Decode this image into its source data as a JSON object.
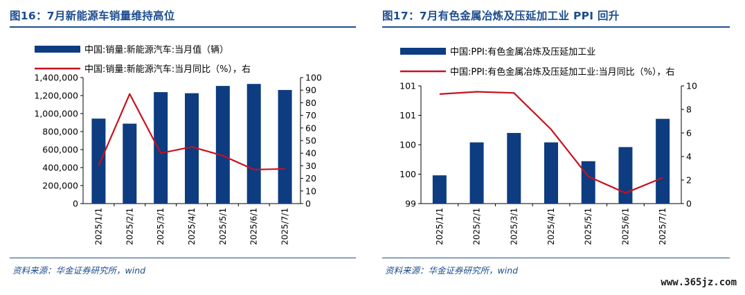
{
  "watermark": "www.365jz.com",
  "colors": {
    "bar": "#0d3c80",
    "line": "#c8101e",
    "title": "#1c4c8f"
  },
  "left": {
    "title": "图16：7月新能源车销量维持高位",
    "source": "资料来源：华金证券研究所，wind",
    "chart_data": {
      "type": "bar",
      "categories": [
        "2025/1/1",
        "2025/2/1",
        "2025/3/1",
        "2025/4/1",
        "2025/5/1",
        "2025/6/1",
        "2025/7/1"
      ],
      "series": [
        {
          "name": "中国:销量:新能源汽车:当月值（辆）",
          "type": "bar",
          "axis": "left",
          "values": [
            944000,
            888000,
            1238000,
            1226000,
            1307000,
            1329000,
            1262000
          ]
        },
        {
          "name": "中国:销量:新能源汽车:当月同比（%），右",
          "type": "line",
          "axis": "right",
          "values": [
            30,
            87,
            40,
            45,
            38,
            27,
            27.5
          ]
        }
      ],
      "ylim": [
        0,
        1400000
      ],
      "y_ticks": [
        "1,400,000",
        "1,200,000",
        "1,000,000",
        "800,000",
        "600,000",
        "400,000",
        "200,000",
        "0"
      ],
      "y2lim": [
        0,
        100
      ],
      "y2_ticks": [
        "100",
        "90",
        "80",
        "70",
        "60",
        "50",
        "40",
        "30",
        "20",
        "10",
        "0"
      ],
      "legend": "top-left"
    }
  },
  "right": {
    "title": "图17：7月有色金属冶炼及压延加工业 PPI 回升",
    "source": "资料来源：华金证券研究所，wind",
    "chart_data": {
      "type": "bar",
      "categories": [
        "2025/1/1",
        "2025/2/1",
        "2025/3/1",
        "2025/4/1",
        "2025/5/1",
        "2025/6/1",
        "2025/7/1"
      ],
      "series": [
        {
          "name": "中国:PPI:有色金属冶炼及压延加工业",
          "type": "bar",
          "axis": "left",
          "values": [
            99.6,
            100.3,
            100.5,
            100.3,
            99.9,
            100.2,
            100.8
          ]
        },
        {
          "name": "中国:PPI:有色金属冶炼及压延加工业:当月同比（%），右",
          "type": "line",
          "axis": "right",
          "values": [
            9.3,
            9.5,
            9.4,
            6.3,
            2.3,
            0.9,
            2.2
          ]
        }
      ],
      "ylim": [
        99,
        101.5
      ],
      "y_ticks": [
        "101",
        "101",
        "100",
        "100",
        "99"
      ],
      "y2lim": [
        0,
        10
      ],
      "y2_ticks": [
        "10",
        "8",
        "6",
        "4",
        "2",
        "0"
      ],
      "legend": "top-left"
    }
  }
}
